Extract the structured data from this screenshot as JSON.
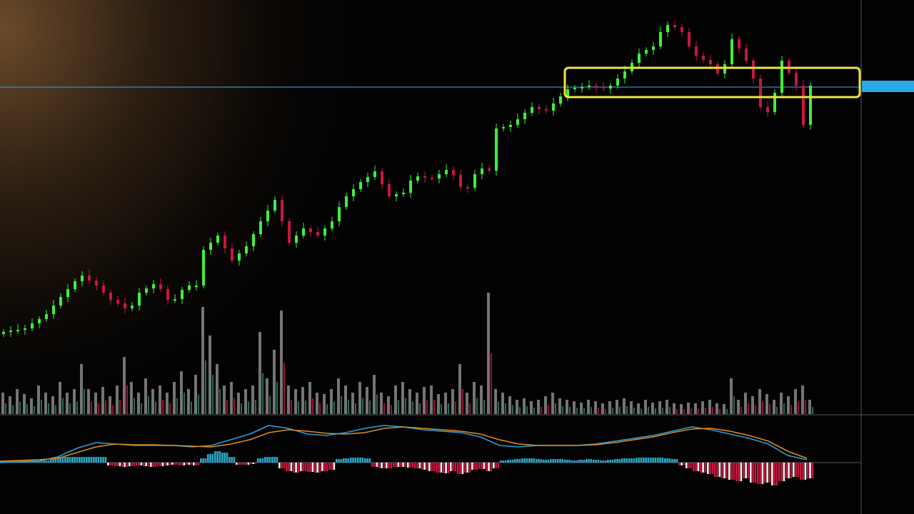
{
  "chart_data": {
    "type": "candlestick",
    "title": "",
    "xlabel": "",
    "ylabel": "",
    "grid": false,
    "colors": {
      "up": "#3cf03c",
      "down": "#c8163e",
      "volume": "#8a8a8a",
      "macd_line": "#2b9fd6",
      "signal_line": "#e08a1e",
      "hist_pos": "#2aa7c9",
      "hist_neg_red": "#c8163e",
      "hist_neg_white": "#f2f2f2",
      "price_line": "#2a8fd8",
      "highlight_box": "#f0e63c"
    },
    "close": [
      35,
      37,
      38,
      40,
      47,
      53,
      60,
      72,
      84,
      95,
      106,
      114,
      107,
      100,
      90,
      80,
      75,
      68,
      72,
      90,
      96,
      102,
      95,
      80,
      81,
      94,
      100,
      100,
      150,
      160,
      170,
      152,
      135,
      145,
      155,
      172,
      190,
      205,
      220,
      190,
      160,
      170,
      180,
      175,
      170,
      180,
      190,
      210,
      225,
      235,
      245,
      252,
      260,
      242,
      225,
      228,
      230,
      247,
      253,
      251,
      250,
      256,
      262,
      255,
      238,
      237,
      256,
      264,
      261,
      320,
      322,
      325,
      333,
      342,
      350,
      347,
      345,
      355,
      365,
      375,
      377,
      378,
      380,
      378,
      376,
      380,
      390,
      400,
      412,
      425,
      430,
      435,
      455,
      465,
      462,
      455,
      435,
      422,
      416,
      410,
      397,
      410,
      445,
      432,
      415,
      390,
      350,
      343,
      370,
      415,
      398,
      380,
      325,
      380
    ],
    "volume": [
      30,
      25,
      35,
      28,
      22,
      40,
      30,
      25,
      45,
      30,
      35,
      70,
      35,
      30,
      38,
      25,
      40,
      80,
      45,
      30,
      50,
      35,
      40,
      30,
      45,
      60,
      35,
      55,
      150,
      110,
      70,
      40,
      45,
      30,
      35,
      40,
      115,
      50,
      90,
      145,
      40,
      35,
      38,
      45,
      30,
      28,
      35,
      50,
      40,
      30,
      45,
      38,
      55,
      30,
      25,
      40,
      45,
      35,
      30,
      38,
      40,
      28,
      30,
      35,
      70,
      30,
      45,
      40,
      170,
      35,
      30,
      25,
      20,
      22,
      18,
      20,
      25,
      30,
      22,
      20,
      18,
      16,
      20,
      18,
      15,
      18,
      20,
      22,
      18,
      15,
      20,
      16,
      18,
      20,
      15,
      14,
      16,
      15,
      18,
      20,
      15,
      14,
      50,
      20,
      30,
      25,
      35,
      28,
      20,
      30,
      25,
      35,
      40,
      20
    ],
    "macd": [
      0,
      1,
      2,
      8,
      20,
      28,
      26,
      24,
      24,
      24,
      22,
      24,
      32,
      40,
      52,
      48,
      40,
      38,
      42,
      48,
      52,
      50,
      46,
      44,
      42,
      36,
      24,
      22,
      24,
      24,
      24,
      26,
      30,
      34,
      38,
      44,
      50,
      46,
      40,
      34,
      26,
      10,
      4
    ],
    "signal": [
      2,
      3,
      4,
      6,
      14,
      22,
      26,
      25,
      25,
      24,
      23,
      22,
      26,
      32,
      42,
      46,
      44,
      41,
      40,
      42,
      48,
      50,
      48,
      46,
      44,
      40,
      32,
      26,
      24,
      24,
      24,
      25,
      28,
      32,
      36,
      42,
      47,
      48,
      44,
      38,
      30,
      16,
      6
    ],
    "histogram": [
      2,
      2,
      3,
      3,
      3,
      3,
      3,
      6,
      8,
      8,
      8,
      8,
      8,
      8,
      8,
      -4,
      -5,
      -6,
      -5,
      -4,
      -5,
      -6,
      -5,
      -4,
      -3,
      -4,
      -3,
      -4,
      6,
      12,
      16,
      14,
      8,
      -3,
      -3,
      -2,
      6,
      8,
      8,
      -8,
      -12,
      -14,
      -12,
      -13,
      -14,
      -12,
      -10,
      5,
      6,
      7,
      7,
      6,
      -6,
      -8,
      -8,
      -6,
      -6,
      -7,
      -8,
      -10,
      -12,
      -14,
      -15,
      -12,
      -16,
      -14,
      -10,
      -9,
      -12,
      -8,
      3,
      4,
      5,
      6,
      6,
      5,
      4,
      5,
      5,
      4,
      3,
      4,
      5,
      4,
      3,
      4,
      5,
      6,
      6,
      7,
      7,
      7,
      7,
      6,
      5,
      -4,
      -8,
      -12,
      -14,
      -16,
      -20,
      -22,
      -24,
      -26,
      -22,
      -28,
      -30,
      -28,
      -32,
      -26,
      -22,
      -20,
      -24,
      -22
    ],
    "price_line_label": ""
  }
}
